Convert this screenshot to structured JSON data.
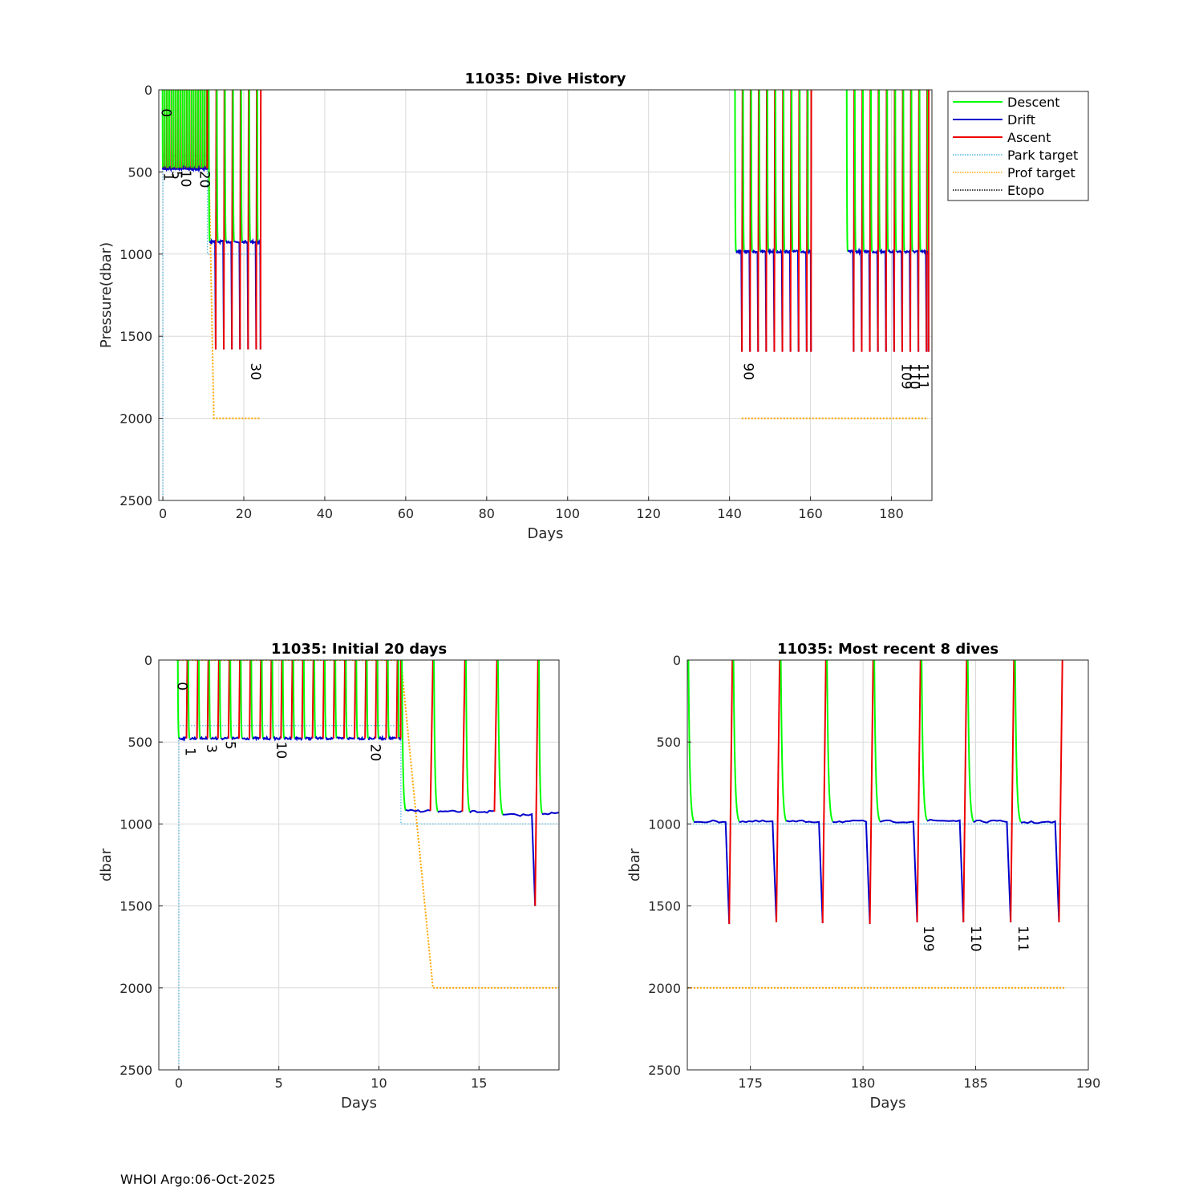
{
  "footer": "WHOI Argo:06-Oct-2025",
  "colors": {
    "descent": "#00ff00",
    "drift": "#0000cc",
    "ascent": "#ee0000",
    "park_target": "#4fb5e0",
    "prof_target": "#ffa500",
    "etopo": "#000000",
    "grid": "#d9d9d9"
  },
  "legend": {
    "placement": "outside-top-right",
    "entries": [
      {
        "label": "Descent",
        "color_key": "descent",
        "dotted": false
      },
      {
        "label": "Drift",
        "color_key": "drift",
        "dotted": false
      },
      {
        "label": "Ascent",
        "color_key": "ascent",
        "dotted": false
      },
      {
        "label": "Park target",
        "color_key": "park_target",
        "dotted": true
      },
      {
        "label": "Prof target",
        "color_key": "prof_target",
        "dotted": true
      },
      {
        "label": "Etopo",
        "color_key": "etopo",
        "dotted": true
      }
    ]
  },
  "chart_data": [
    {
      "id": "history",
      "type": "line",
      "title": "11035: Dive History",
      "xlabel": "Days",
      "ylabel": "Pressure(dbar)",
      "xlim": [
        -1,
        190
      ],
      "ylim": [
        0,
        2500
      ],
      "y_reversed": true,
      "xticks": [
        0,
        20,
        40,
        60,
        80,
        100,
        120,
        140,
        160,
        180
      ],
      "yticks": [
        0,
        500,
        1000,
        1500,
        2000,
        2500
      ],
      "segments": [
        {
          "start": -0.1,
          "end": 11,
          "period": 0.55,
          "park": 480,
          "dip": 0,
          "surface_time": 0.03
        },
        {
          "start": 11.2,
          "end": 24.2,
          "period": 2.0,
          "park": 925,
          "dip": 1580,
          "surface_time": 0.15
        },
        {
          "start": 141.2,
          "end": 160.2,
          "period": 2.0,
          "park": 985,
          "dip": 1595,
          "surface_time": 0.15
        },
        {
          "start": 168.8,
          "end": 189.2,
          "period": 2.0,
          "park": 985,
          "dip": 1595,
          "surface_time": 0.15
        }
      ],
      "park_target": [
        [
          0,
          2500
        ],
        [
          0,
          400
        ],
        [
          11,
          400
        ],
        [
          11,
          1000
        ],
        [
          24,
          1000
        ]
      ],
      "prof_target": [
        [
          0,
          0
        ],
        [
          11,
          0
        ],
        [
          12.6,
          2000
        ],
        [
          24,
          2000
        ]
      ],
      "prof_target_2": [
        [
          143,
          2000
        ],
        [
          189,
          2000
        ]
      ],
      "labels": [
        {
          "text": "0",
          "x": -0.3,
          "y": 140
        },
        {
          "text": "1",
          "x": 0.3,
          "y": 530
        },
        {
          "text": "5",
          "x": 2.3,
          "y": 520
        },
        {
          "text": "10",
          "x": 4.5,
          "y": 540
        },
        {
          "text": "20",
          "x": 9.2,
          "y": 545
        },
        {
          "text": "30",
          "x": 21.8,
          "y": 1715
        },
        {
          "text": "90",
          "x": 143.5,
          "y": 1715
        },
        {
          "text": "109",
          "x": 182.6,
          "y": 1745
        },
        {
          "text": "110",
          "x": 184.6,
          "y": 1745
        },
        {
          "text": "111",
          "x": 186.7,
          "y": 1745
        }
      ]
    },
    {
      "id": "initial",
      "type": "line",
      "title": "11035: Initial 20 days",
      "xlabel": "Days",
      "ylabel": "dbar",
      "xlim": [
        -1,
        19
      ],
      "ylim": [
        0,
        2500
      ],
      "y_reversed": true,
      "xticks": [
        0,
        5,
        10,
        15
      ],
      "yticks": [
        0,
        500,
        1000,
        1500,
        2000,
        2500
      ],
      "segments": [
        {
          "start": -0.1,
          "end": 11.1,
          "period": 0.525,
          "park": 478,
          "dip": 0,
          "surface_time": 0.05
        },
        {
          "start": 11.1,
          "end": 12.7,
          "period": 1.6,
          "park": 920,
          "dip": 0,
          "surface_time": 0.05
        },
        {
          "start": 12.7,
          "end": 14.3,
          "period": 1.6,
          "park": 925,
          "dip": 0,
          "surface_time": 0.05
        },
        {
          "start": 14.3,
          "end": 15.9,
          "period": 1.6,
          "park": 925,
          "dip": 0,
          "surface_time": 0.05
        },
        {
          "start": 15.9,
          "end": 17.95,
          "period": 2.05,
          "park": 945,
          "dip": 1500,
          "surface_time": 0.05
        },
        {
          "start": 17.95,
          "end": 19.2,
          "period": 2.0,
          "park": 935,
          "dip": 0,
          "surface_time": 0.05
        }
      ],
      "park_target": [
        [
          0,
          2500
        ],
        [
          0,
          400
        ],
        [
          11.1,
          400
        ],
        [
          11.1,
          1000
        ],
        [
          19,
          1000
        ]
      ],
      "prof_target": [
        [
          0,
          0
        ],
        [
          11.1,
          0
        ],
        [
          12.7,
          2000
        ],
        [
          19,
          2000
        ]
      ],
      "labels": [
        {
          "text": "0",
          "x": -0.05,
          "y": 160
        },
        {
          "text": "1",
          "x": 0.35,
          "y": 560
        },
        {
          "text": "3",
          "x": 1.4,
          "y": 540
        },
        {
          "text": "5",
          "x": 2.35,
          "y": 520
        },
        {
          "text": "10",
          "x": 4.9,
          "y": 550
        },
        {
          "text": "20",
          "x": 9.6,
          "y": 565
        }
      ]
    },
    {
      "id": "recent",
      "type": "line",
      "title": "11035: Most recent 8 dives",
      "xlabel": "Days",
      "ylabel": "dbar",
      "xlim": [
        172.2,
        190
      ],
      "ylim": [
        0,
        2500
      ],
      "y_reversed": true,
      "xticks": [
        175,
        180,
        185,
        190
      ],
      "yticks": [
        0,
        500,
        1000,
        1500,
        2000,
        2500
      ],
      "segments": [
        {
          "start": 172.2,
          "end": 174.2,
          "period": 2.0,
          "park": 985,
          "dip": 1610,
          "surface_time": 0.05
        },
        {
          "start": 174.2,
          "end": 176.3,
          "period": 2.1,
          "park": 985,
          "dip": 1600,
          "surface_time": 0.05
        },
        {
          "start": 176.3,
          "end": 178.35,
          "period": 2.05,
          "park": 985,
          "dip": 1605,
          "surface_time": 0.05
        },
        {
          "start": 178.35,
          "end": 180.45,
          "period": 2.1,
          "park": 985,
          "dip": 1610,
          "surface_time": 0.05
        },
        {
          "start": 180.45,
          "end": 182.55,
          "period": 2.1,
          "park": 985,
          "dip": 1600,
          "surface_time": 0.05
        },
        {
          "start": 182.55,
          "end": 184.6,
          "period": 2.05,
          "park": 980,
          "dip": 1600,
          "surface_time": 0.05
        },
        {
          "start": 184.6,
          "end": 186.7,
          "period": 2.1,
          "park": 985,
          "dip": 1600,
          "surface_time": 0.05
        },
        {
          "start": 186.7,
          "end": 188.85,
          "period": 2.15,
          "park": 990,
          "dip": 1600,
          "surface_time": 0.05
        }
      ],
      "park_target": [
        [
          172.2,
          1000
        ],
        [
          189,
          1000
        ]
      ],
      "prof_target": [
        [
          172.2,
          2000
        ],
        [
          189,
          2000
        ]
      ],
      "labels": [
        {
          "text": "109",
          "x": 182.7,
          "y": 1700
        },
        {
          "text": "110",
          "x": 184.8,
          "y": 1700
        },
        {
          "text": "111",
          "x": 186.9,
          "y": 1700
        }
      ]
    }
  ]
}
